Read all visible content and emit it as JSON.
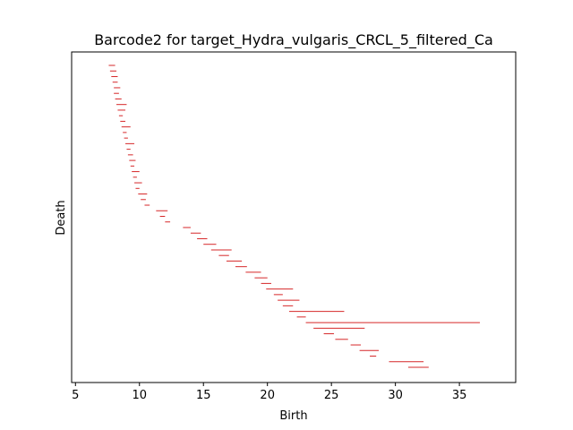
{
  "chart_data": {
    "type": "barcode",
    "title": "Barcode2 for target_Hydra_vulgaris_CRCL_5_filtered_Ca",
    "xlabel": "Birth",
    "ylabel": "Death",
    "xlim": [
      4.7,
      39.4
    ],
    "xticks": [
      5,
      10,
      15,
      20,
      25,
      30,
      35
    ],
    "bar_color": "#d62728",
    "grid": false,
    "segments": [
      {
        "birth": 7.6,
        "death": 8.1
      },
      {
        "birth": 7.7,
        "death": 8.2
      },
      {
        "birth": 7.8,
        "death": 8.3
      },
      {
        "birth": 7.9,
        "death": 8.3
      },
      {
        "birth": 8.0,
        "death": 8.5
      },
      {
        "birth": 8.0,
        "death": 8.4
      },
      {
        "birth": 8.1,
        "death": 8.6
      },
      {
        "birth": 8.2,
        "death": 9.0
      },
      {
        "birth": 8.3,
        "death": 8.9
      },
      {
        "birth": 8.4,
        "death": 8.7
      },
      {
        "birth": 8.5,
        "death": 8.9
      },
      {
        "birth": 8.6,
        "death": 9.3
      },
      {
        "birth": 8.7,
        "death": 9.0
      },
      {
        "birth": 8.8,
        "death": 9.1
      },
      {
        "birth": 8.9,
        "death": 9.6
      },
      {
        "birth": 9.0,
        "death": 9.3
      },
      {
        "birth": 9.1,
        "death": 9.5
      },
      {
        "birth": 9.2,
        "death": 9.7
      },
      {
        "birth": 9.3,
        "death": 9.6
      },
      {
        "birth": 9.4,
        "death": 10.0
      },
      {
        "birth": 9.5,
        "death": 9.8
      },
      {
        "birth": 9.6,
        "death": 10.2
      },
      {
        "birth": 9.7,
        "death": 10.0
      },
      {
        "birth": 9.9,
        "death": 10.6
      },
      {
        "birth": 10.1,
        "death": 10.5
      },
      {
        "birth": 10.4,
        "death": 10.8
      },
      {
        "birth": 11.3,
        "death": 12.2
      },
      {
        "birth": 11.6,
        "death": 12.0
      },
      {
        "birth": 12.0,
        "death": 12.4
      },
      {
        "birth": 13.4,
        "death": 14.0
      },
      {
        "birth": 14.0,
        "death": 14.8
      },
      {
        "birth": 14.5,
        "death": 15.3
      },
      {
        "birth": 15.0,
        "death": 16.0
      },
      {
        "birth": 15.6,
        "death": 17.2
      },
      {
        "birth": 16.2,
        "death": 17.0
      },
      {
        "birth": 16.8,
        "death": 18.0
      },
      {
        "birth": 17.5,
        "death": 18.4
      },
      {
        "birth": 18.3,
        "death": 19.5
      },
      {
        "birth": 19.0,
        "death": 20.0
      },
      {
        "birth": 19.5,
        "death": 20.3
      },
      {
        "birth": 19.9,
        "death": 22.0
      },
      {
        "birth": 20.5,
        "death": 21.2
      },
      {
        "birth": 20.8,
        "death": 22.5
      },
      {
        "birth": 21.2,
        "death": 22.0
      },
      {
        "birth": 21.7,
        "death": 26.0
      },
      {
        "birth": 22.3,
        "death": 23.0
      },
      {
        "birth": 23.0,
        "death": 36.6
      },
      {
        "birth": 23.6,
        "death": 27.6
      },
      {
        "birth": 24.4,
        "death": 25.2
      },
      {
        "birth": 25.3,
        "death": 26.3
      },
      {
        "birth": 26.5,
        "death": 27.3
      },
      {
        "birth": 27.2,
        "death": 28.7
      },
      {
        "birth": 28.0,
        "death": 28.5
      },
      {
        "birth": 29.5,
        "death": 32.2
      },
      {
        "birth": 31.0,
        "death": 32.6
      }
    ]
  }
}
